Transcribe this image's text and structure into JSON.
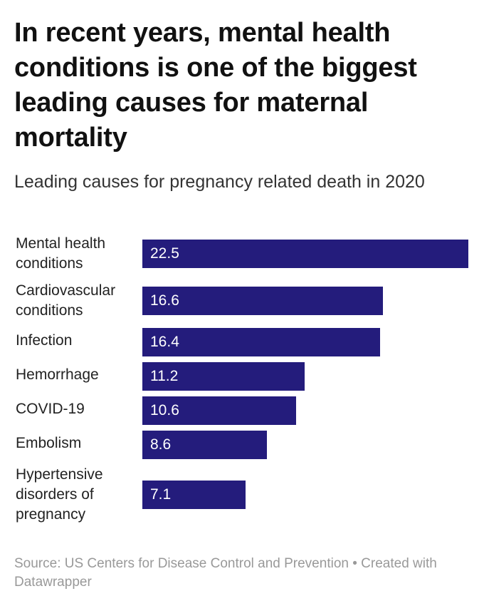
{
  "header": {
    "title": "In recent years, mental health conditions is one of the biggest leading causes for maternal mortality",
    "subtitle": "Leading causes for pregnancy related death in 2020"
  },
  "chart_data": {
    "type": "bar",
    "orientation": "horizontal",
    "categories": [
      "Mental health conditions",
      "Cardiovascular conditions",
      "Infection",
      "Hemorrhage",
      "COVID-19",
      "Embolism",
      "Hypertensive disorders of pregnancy"
    ],
    "values": [
      22.5,
      16.6,
      16.4,
      11.2,
      10.6,
      8.6,
      7.1
    ],
    "value_labels": [
      "22.5",
      "16.6",
      "16.4",
      "11.2",
      "10.6",
      "8.6",
      "7.1"
    ],
    "xlim": [
      0,
      22.5
    ],
    "grid": false,
    "bar_color": "#241c7c",
    "value_label_color": "#ffffff"
  },
  "footer": {
    "source": "Source: US Centers for Disease Control and Prevention • Created with Datawrapper"
  }
}
